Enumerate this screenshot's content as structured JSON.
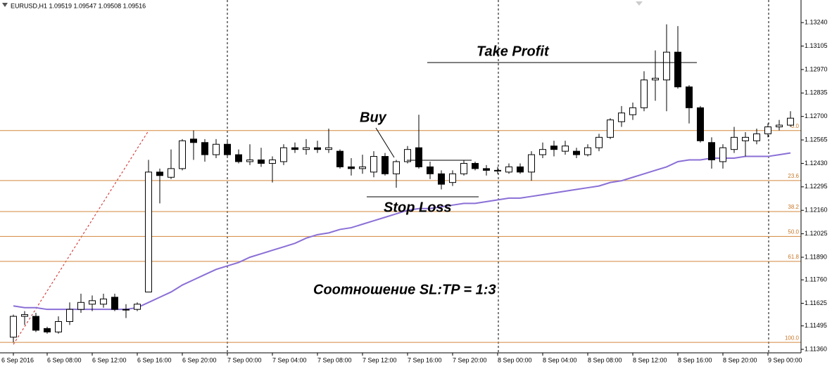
{
  "chart_data": {
    "type": "candlestick",
    "title": "EURUSD,H1  1.09519 1.09547 1.09508 1.09516",
    "categories": [
      "6 Sep 2016",
      null,
      null,
      "6 Sep 08:00",
      null,
      null,
      null,
      "6 Sep 12:00",
      null,
      null,
      null,
      "6 Sep 16:00",
      null,
      null,
      null,
      "6 Sep 20:00",
      null,
      null,
      null,
      "7 Sep 00:00",
      null,
      null,
      null,
      "7 Sep 04:00",
      null,
      null,
      null,
      "7 Sep 08:00",
      null,
      null,
      null,
      "7 Sep 12:00",
      null,
      null,
      null,
      "7 Sep 16:00",
      null,
      null,
      null,
      "7 Sep 20:00",
      null,
      null,
      null,
      "8 Sep 00:00",
      null,
      null,
      null,
      "8 Sep 04:00",
      null,
      null,
      null,
      "8 Sep 08:00",
      null,
      null,
      null,
      "8 Sep 12:00",
      null,
      null,
      null,
      "8 Sep 16:00",
      null,
      null,
      null,
      "8 Sep 20:00",
      null,
      null,
      null,
      "9 Sep 00:00",
      null,
      null
    ],
    "open": [
      1.1143,
      1.1155,
      1.1155,
      1.1148,
      1.1146,
      1.1152,
      1.1159,
      1.1162,
      1.1162,
      1.1166,
      1.1159,
      1.1159,
      1.1169,
      1.1238,
      1.1235,
      1.124,
      1.1257,
      1.1255,
      1.1248,
      1.1254,
      1.1248,
      1.1244,
      1.1245,
      1.1243,
      1.1244,
      1.1252,
      1.1251,
      1.1252,
      1.1251,
      1.125,
      1.1241,
      1.124,
      1.1238,
      1.1247,
      1.1237,
      1.1244,
      1.1252,
      1.1241,
      1.1237,
      1.1232,
      1.1237,
      1.1243,
      1.124,
      1.1239,
      1.1238,
      1.1241,
      1.1238,
      1.1248,
      1.1253,
      1.125,
      1.125,
      1.1248,
      1.1252,
      1.1258,
      1.1267,
      1.1271,
      1.1275,
      1.1291,
      1.1291,
      1.1307,
      1.1287,
      1.1275,
      1.1255,
      1.1244,
      1.1251,
      1.1256,
      1.1256,
      1.126,
      1.1264,
      1.1265
    ],
    "high": [
      1.1156,
      1.1158,
      1.1157,
      1.1149,
      1.1155,
      1.1163,
      1.1168,
      1.1167,
      1.1168,
      1.1168,
      1.1162,
      1.1163,
      1.1245,
      1.124,
      1.1251,
      1.1257,
      1.1262,
      1.1257,
      1.1257,
      1.1256,
      1.1251,
      1.1254,
      1.1252,
      1.1247,
      1.1254,
      1.1255,
      1.1257,
      1.1256,
      1.1263,
      1.1251,
      1.1246,
      1.1248,
      1.125,
      1.1249,
      1.1245,
      1.1253,
      1.1271,
      1.1244,
      1.1239,
      1.1239,
      1.1245,
      1.1244,
      1.1242,
      1.1241,
      1.1243,
      1.1243,
      1.125,
      1.1255,
      1.1256,
      1.1256,
      1.1252,
      1.1254,
      1.126,
      1.1269,
      1.1276,
      1.1278,
      1.1296,
      1.1308,
      1.1323,
      1.1322,
      1.1288,
      1.1276,
      1.1258,
      1.1254,
      1.1264,
      1.1261,
      1.1263,
      1.1266,
      1.1268,
      1.1273
    ],
    "low": [
      1.114,
      1.115,
      1.1146,
      1.1145,
      1.1145,
      1.115,
      1.1157,
      1.1158,
      1.116,
      1.1158,
      1.1154,
      1.1158,
      1.1169,
      1.122,
      1.1234,
      1.1239,
      1.1245,
      1.1244,
      1.1246,
      1.1246,
      1.1243,
      1.1242,
      1.1241,
      1.1232,
      1.1242,
      1.1249,
      1.1248,
      1.1249,
      1.1249,
      1.124,
      1.1236,
      1.1237,
      1.1235,
      1.1236,
      1.1229,
      1.1243,
      1.124,
      1.1234,
      1.1228,
      1.123,
      1.1236,
      1.1239,
      1.1236,
      1.1237,
      1.1237,
      1.1237,
      1.1233,
      1.1246,
      1.1247,
      1.1248,
      1.1246,
      1.1247,
      1.125,
      1.1257,
      1.1264,
      1.1268,
      1.1273,
      1.1279,
      1.1273,
      1.1286,
      1.1266,
      1.1255,
      1.124,
      1.124,
      1.1249,
      1.1247,
      1.1254,
      1.1258,
      1.1262,
      1.1264
    ],
    "close": [
      1.1155,
      1.1156,
      1.1147,
      1.1146,
      1.1152,
      1.1159,
      1.1163,
      1.1164,
      1.1165,
      1.1159,
      1.1159,
      1.1162,
      1.1238,
      1.1236,
      1.124,
      1.1256,
      1.1255,
      1.1248,
      1.1254,
      1.1248,
      1.1244,
      1.1245,
      1.1243,
      1.1245,
      1.1252,
      1.1251,
      1.1252,
      1.1251,
      1.1252,
      1.1241,
      1.124,
      1.1241,
      1.1247,
      1.1237,
      1.1244,
      1.1251,
      1.1241,
      1.1237,
      1.1231,
      1.1237,
      1.1243,
      1.124,
      1.1239,
      1.1239,
      1.1241,
      1.1238,
      1.1248,
      1.1251,
      1.1251,
      1.1253,
      1.1248,
      1.1252,
      1.1258,
      1.1268,
      1.1272,
      1.1275,
      1.1291,
      1.1292,
      1.1307,
      1.1287,
      1.1275,
      1.1256,
      1.1245,
      1.1252,
      1.1258,
      1.1258,
      1.126,
      1.1264,
      1.1265,
      1.1269
    ],
    "up_color": "#ffffff",
    "down_color": "#000000",
    "ma": {
      "color": "#8a6fd6",
      "values": [
        1.1161,
        1.116,
        1.116,
        1.1159,
        1.1159,
        1.1159,
        1.1159,
        1.1159,
        1.1159,
        1.1159,
        1.1159,
        1.116,
        1.1163,
        1.1166,
        1.1169,
        1.1173,
        1.1176,
        1.1179,
        1.1182,
        1.1184,
        1.1186,
        1.1189,
        1.1191,
        1.1193,
        1.1195,
        1.1197,
        1.12,
        1.1202,
        1.1203,
        1.1205,
        1.1206,
        1.1208,
        1.121,
        1.1212,
        1.1214,
        1.1216,
        1.1217,
        1.1217,
        1.1218,
        1.1219,
        1.122,
        1.122,
        1.1221,
        1.1222,
        1.1223,
        1.1223,
        1.1224,
        1.1225,
        1.1226,
        1.1227,
        1.1228,
        1.1229,
        1.123,
        1.1232,
        1.1233,
        1.1235,
        1.1237,
        1.1239,
        1.1241,
        1.1244,
        1.1245,
        1.1245,
        1.1246,
        1.1246,
        1.1246,
        1.1247,
        1.1247,
        1.1247,
        1.1248,
        1.1249
      ]
    },
    "fib_color": "#d2873c",
    "fib_levels": [
      {
        "value": 1.12619,
        "label": "0.0"
      },
      {
        "value": 1.12331,
        "label": "23.6"
      },
      {
        "value": 1.12153,
        "label": "38.2"
      },
      {
        "value": 1.1201,
        "label": "50.0"
      },
      {
        "value": 1.11866,
        "label": "61.8"
      },
      {
        "value": 1.114,
        "label": "100.0"
      }
    ],
    "ylim": [
      1.1134,
      1.1337
    ],
    "yticks": [
      {
        "value": 1.1324,
        "label": "1.13240"
      },
      {
        "value": 1.13105,
        "label": "1.13105"
      },
      {
        "value": 1.1297,
        "label": "1.12970"
      },
      {
        "value": 1.12835,
        "label": "1.12835"
      },
      {
        "value": 1.127,
        "label": "1.12700"
      },
      {
        "value": 1.12565,
        "label": "1.12565"
      },
      {
        "value": 1.1243,
        "label": "1.12430"
      },
      {
        "value": 1.12295,
        "label": "1.12295"
      },
      {
        "value": 1.1216,
        "label": "1.12160"
      },
      {
        "value": 1.12025,
        "label": "1.12025"
      },
      {
        "value": 1.1189,
        "label": "1.11890"
      },
      {
        "value": 1.1176,
        "label": "1.11760"
      },
      {
        "value": 1.11625,
        "label": "1.11625"
      },
      {
        "value": 1.11495,
        "label": "1.11495"
      },
      {
        "value": 1.1136,
        "label": "1.11360"
      }
    ],
    "annotations": {
      "take_profit": "Take Profit",
      "buy": "Buy",
      "stop_loss": "Stop Loss",
      "ratio": "Соотношение SL:TP = 1:3"
    }
  }
}
